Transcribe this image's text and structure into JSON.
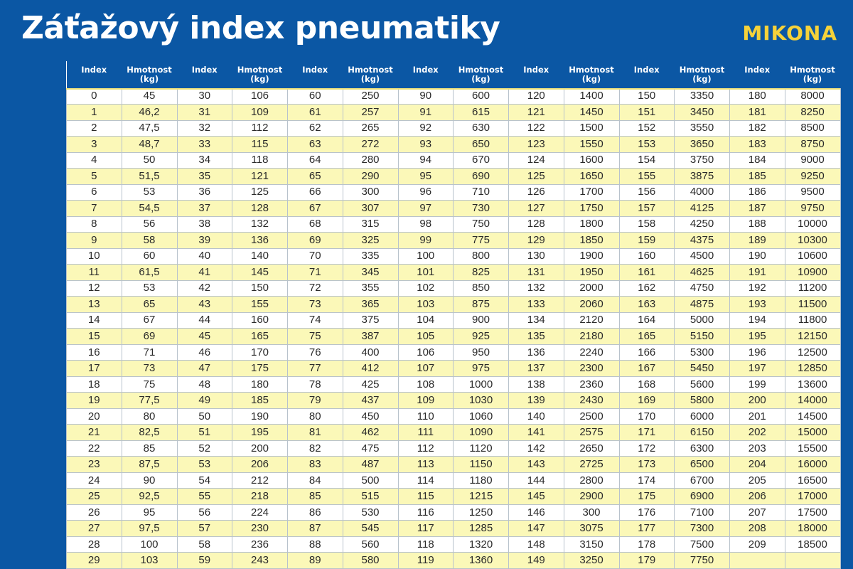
{
  "title": "Záťažový index pneumatiky",
  "brand": "MIKONA",
  "columns": [
    {
      "index": "Index",
      "weight": "Hmotnost (kg)"
    },
    {
      "index": "Index",
      "weight": "Hmotnost (kg)"
    },
    {
      "index": "Index",
      "weight": "Hmotnost (kg)"
    },
    {
      "index": "Index",
      "weight": "Hmotnost (kg)"
    },
    {
      "index": "Index",
      "weight": "Hmotnost (kg)"
    },
    {
      "index": "Index",
      "weight": "Hmotnost (kg)"
    },
    {
      "index": "Index",
      "weight": "Hmotnost (kg)"
    }
  ],
  "rows": [
    [
      "0",
      "45",
      "30",
      "106",
      "60",
      "250",
      "90",
      "600",
      "120",
      "1400",
      "150",
      "3350",
      "180",
      "8000"
    ],
    [
      "1",
      "46,2",
      "31",
      "109",
      "61",
      "257",
      "91",
      "615",
      "121",
      "1450",
      "151",
      "3450",
      "181",
      "8250"
    ],
    [
      "2",
      "47,5",
      "32",
      "112",
      "62",
      "265",
      "92",
      "630",
      "122",
      "1500",
      "152",
      "3550",
      "182",
      "8500"
    ],
    [
      "3",
      "48,7",
      "33",
      "115",
      "63",
      "272",
      "93",
      "650",
      "123",
      "1550",
      "153",
      "3650",
      "183",
      "8750"
    ],
    [
      "4",
      "50",
      "34",
      "118",
      "64",
      "280",
      "94",
      "670",
      "124",
      "1600",
      "154",
      "3750",
      "184",
      "9000"
    ],
    [
      "5",
      "51,5",
      "35",
      "121",
      "65",
      "290",
      "95",
      "690",
      "125",
      "1650",
      "155",
      "3875",
      "185",
      "9250"
    ],
    [
      "6",
      "53",
      "36",
      "125",
      "66",
      "300",
      "96",
      "710",
      "126",
      "1700",
      "156",
      "4000",
      "186",
      "9500"
    ],
    [
      "7",
      "54,5",
      "37",
      "128",
      "67",
      "307",
      "97",
      "730",
      "127",
      "1750",
      "157",
      "4125",
      "187",
      "9750"
    ],
    [
      "8",
      "56",
      "38",
      "132",
      "68",
      "315",
      "98",
      "750",
      "128",
      "1800",
      "158",
      "4250",
      "188",
      "10000"
    ],
    [
      "9",
      "58",
      "39",
      "136",
      "69",
      "325",
      "99",
      "775",
      "129",
      "1850",
      "159",
      "4375",
      "189",
      "10300"
    ],
    [
      "10",
      "60",
      "40",
      "140",
      "70",
      "335",
      "100",
      "800",
      "130",
      "1900",
      "160",
      "4500",
      "190",
      "10600"
    ],
    [
      "11",
      "61,5",
      "41",
      "145",
      "71",
      "345",
      "101",
      "825",
      "131",
      "1950",
      "161",
      "4625",
      "191",
      "10900"
    ],
    [
      "12",
      "53",
      "42",
      "150",
      "72",
      "355",
      "102",
      "850",
      "132",
      "2000",
      "162",
      "4750",
      "192",
      "11200"
    ],
    [
      "13",
      "65",
      "43",
      "155",
      "73",
      "365",
      "103",
      "875",
      "133",
      "2060",
      "163",
      "4875",
      "193",
      "11500"
    ],
    [
      "14",
      "67",
      "44",
      "160",
      "74",
      "375",
      "104",
      "900",
      "134",
      "2120",
      "164",
      "5000",
      "194",
      "11800"
    ],
    [
      "15",
      "69",
      "45",
      "165",
      "75",
      "387",
      "105",
      "925",
      "135",
      "2180",
      "165",
      "5150",
      "195",
      "12150"
    ],
    [
      "16",
      "71",
      "46",
      "170",
      "76",
      "400",
      "106",
      "950",
      "136",
      "2240",
      "166",
      "5300",
      "196",
      "12500"
    ],
    [
      "17",
      "73",
      "47",
      "175",
      "77",
      "412",
      "107",
      "975",
      "137",
      "2300",
      "167",
      "5450",
      "197",
      "12850"
    ],
    [
      "18",
      "75",
      "48",
      "180",
      "78",
      "425",
      "108",
      "1000",
      "138",
      "2360",
      "168",
      "5600",
      "199",
      "13600"
    ],
    [
      "19",
      "77,5",
      "49",
      "185",
      "79",
      "437",
      "109",
      "1030",
      "139",
      "2430",
      "169",
      "5800",
      "200",
      "14000"
    ],
    [
      "20",
      "80",
      "50",
      "190",
      "80",
      "450",
      "110",
      "1060",
      "140",
      "2500",
      "170",
      "6000",
      "201",
      "14500"
    ],
    [
      "21",
      "82,5",
      "51",
      "195",
      "81",
      "462",
      "111",
      "1090",
      "141",
      "2575",
      "171",
      "6150",
      "202",
      "15000"
    ],
    [
      "22",
      "85",
      "52",
      "200",
      "82",
      "475",
      "112",
      "1120",
      "142",
      "2650",
      "172",
      "6300",
      "203",
      "15500"
    ],
    [
      "23",
      "87,5",
      "53",
      "206",
      "83",
      "487",
      "113",
      "1150",
      "143",
      "2725",
      "173",
      "6500",
      "204",
      "16000"
    ],
    [
      "24",
      "90",
      "54",
      "212",
      "84",
      "500",
      "114",
      "1180",
      "144",
      "2800",
      "174",
      "6700",
      "205",
      "16500"
    ],
    [
      "25",
      "92,5",
      "55",
      "218",
      "85",
      "515",
      "115",
      "1215",
      "145",
      "2900",
      "175",
      "6900",
      "206",
      "17000"
    ],
    [
      "26",
      "95",
      "56",
      "224",
      "86",
      "530",
      "116",
      "1250",
      "146",
      "300",
      "176",
      "7100",
      "207",
      "17500"
    ],
    [
      "27",
      "97,5",
      "57",
      "230",
      "87",
      "545",
      "117",
      "1285",
      "147",
      "3075",
      "177",
      "7300",
      "208",
      "18000"
    ],
    [
      "28",
      "100",
      "58",
      "236",
      "88",
      "560",
      "118",
      "1320",
      "148",
      "3150",
      "178",
      "7500",
      "209",
      "18500"
    ],
    [
      "29",
      "103",
      "59",
      "243",
      "89",
      "580",
      "119",
      "1360",
      "149",
      "3250",
      "179",
      "7750",
      "",
      ""
    ]
  ],
  "colors": {
    "background": "#0b57a4",
    "brand": "#f6d23a",
    "row_alt": "#fbf8b8"
  }
}
